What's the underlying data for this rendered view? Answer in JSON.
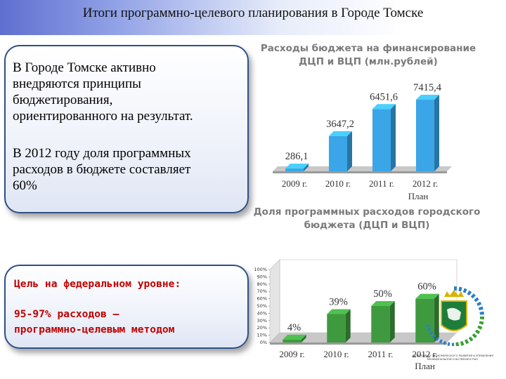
{
  "header": {
    "title": "Итоги программно-целевого планирования в Городе Томске"
  },
  "box_top": {
    "paragraph1": "В Городе Томске активно\nвнедряются принципы\nбюджетирования,\nориентированного на результат.",
    "paragraph2": "В 2012 году доля программных\nрасходов в бюджете составляет\n60%"
  },
  "box_bottom": {
    "goal_title": "Цель на федеральном уровне:",
    "goal_text": "95-97% расходов –\nпрограммно-целевым методом"
  },
  "logo": {
    "caption": "ДЕПАРТАМЕНТ ЭКОНОМИЧЕСКОГО РАЗВИТИЯ И УПРАВЛЕНИЯ МУНИЦИПАЛЬНОЙ СОБСТВЕННОСТЬЮ",
    "icon": "tomsk-coat-of-arms-icon",
    "colors": {
      "shield": "#1e7d3a",
      "ring_blue": "#2a7fc8",
      "ring_green": "#3aa035"
    }
  },
  "chart_data": [
    {
      "type": "bar",
      "title_lines": [
        "Расходы бюджета на финансирование",
        "ДЦП и ВЦП (млн.рублей)"
      ],
      "categories": [
        "2009 г.",
        "2010 г.",
        "2011 г.",
        "2012 г."
      ],
      "category_note": "План",
      "values": [
        286.1,
        3647.2,
        6451.6,
        7415.4
      ],
      "value_labels": [
        "286,1",
        "3647,2",
        "6451,6",
        "7415,4"
      ],
      "ylim": [
        0,
        8000
      ],
      "bar_color": "#3aa6e8",
      "axis_visible": false
    },
    {
      "type": "bar",
      "title_lines": [
        "Доля программных расходов городского",
        "бюджета (ДЦП и ВЦП)"
      ],
      "categories": [
        "2009 г.",
        "2010 г.",
        "2011 г.",
        "2012 г."
      ],
      "category_note": "План",
      "values": [
        4,
        39,
        50,
        60
      ],
      "value_labels": [
        "4%",
        "39%",
        "50%",
        "60%"
      ],
      "ylim": [
        0,
        100
      ],
      "yticks": [
        "0%",
        "10%",
        "20%",
        "30%",
        "40%",
        "50%",
        "60%",
        "70%",
        "80%",
        "90%",
        "100%"
      ],
      "bar_color": "#3f9a3f"
    }
  ]
}
